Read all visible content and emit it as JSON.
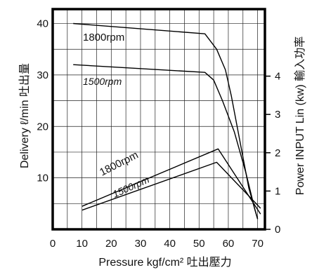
{
  "chart_data": {
    "type": "line",
    "xlabel": "Pressure kgf/cm² 吐出壓力",
    "ylabel": "Delivery ℓ/min 吐出量",
    "y2label": "Power INPUT Lin (kw) 輸入功率",
    "xlim": [
      0,
      70
    ],
    "ylim": [
      0,
      40
    ],
    "y2lim": [
      0,
      4
    ],
    "x_ticks": [
      "0",
      "10",
      "20",
      "30",
      "40",
      "50",
      "60",
      "70"
    ],
    "y_ticks": [
      "10",
      "20",
      "30",
      "40"
    ],
    "y2_ticks": [
      "0",
      "1",
      "2",
      "3",
      "4"
    ],
    "grid": true,
    "series": [
      {
        "name": "1800rpm",
        "axis": "left",
        "points": [
          [
            7,
            40
          ],
          [
            52,
            38
          ],
          [
            56,
            35
          ],
          [
            59,
            31
          ],
          [
            61,
            26
          ],
          [
            64,
            17
          ],
          [
            67,
            8
          ],
          [
            70,
            2
          ]
        ]
      },
      {
        "name": "1500rpm",
        "axis": "left",
        "points": [
          [
            7,
            32
          ],
          [
            52,
            30.5
          ],
          [
            55,
            29
          ],
          [
            58,
            25
          ],
          [
            62,
            19
          ],
          [
            66,
            11
          ],
          [
            69,
            4
          ],
          [
            70,
            2
          ]
        ]
      },
      {
        "name": "1800rpm",
        "axis": "right",
        "points": [
          [
            10,
            0.6
          ],
          [
            56.5,
            2.1
          ],
          [
            71,
            0.4
          ]
        ]
      },
      {
        "name": "1500rpm",
        "axis": "right",
        "points": [
          [
            10,
            0.5
          ],
          [
            56,
            1.75
          ],
          [
            71,
            0.55
          ]
        ]
      }
    ]
  }
}
